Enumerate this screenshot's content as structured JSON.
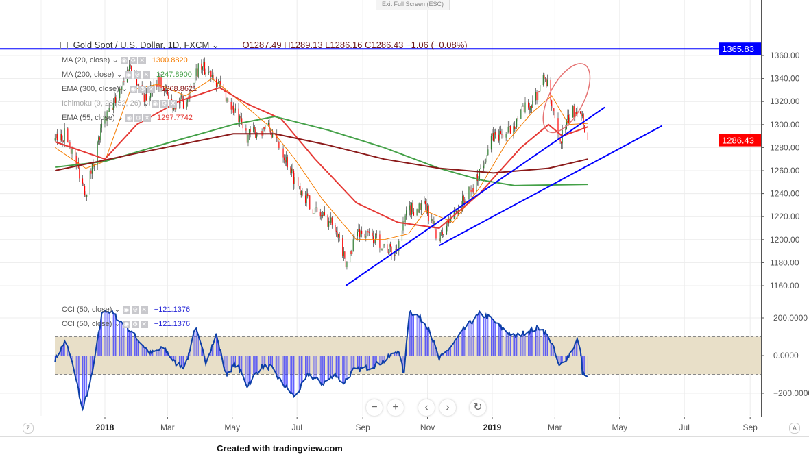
{
  "toolbar": {
    "exit_fullscreen": "Exit Full Screen (ESC)"
  },
  "header": {
    "symbol": "Gold Spot / U.S. Dollar, 1D, FXCM",
    "ohlc": "O1287.49  H1289.13  L1286.16  C1286.43  −1.06 (−0.08%)"
  },
  "indicators": [
    {
      "label": "MA (20, close)",
      "value": "1300.8820",
      "color": "#f57c00"
    },
    {
      "label": "MA (200, close)",
      "value": "1247.8900",
      "color": "#43a047"
    },
    {
      "label": "EMA (300, close)",
      "value": "1268.8621",
      "color": "#8b1a1a"
    },
    {
      "label": "Ichimoku (9, 26, 52, 26)",
      "value": "",
      "color": "#999999"
    },
    {
      "label": "EMA (55, close)",
      "value": "1297.7742",
      "color": "#e53935"
    }
  ],
  "cci_legends": [
    {
      "label": "CCI (50, close)",
      "value": "−121.1376"
    },
    {
      "label": "CCI (50, close)",
      "value": "−121.1376"
    }
  ],
  "footer": {
    "credit": "Created with tradingview.com",
    "left_button": "Z",
    "right_button": "A"
  },
  "nav": {
    "zoom_out": "−",
    "zoom_in": "+",
    "scroll_left": "‹",
    "scroll_right": "›",
    "reset": "↻"
  },
  "chart_data": [
    {
      "type": "candlestick",
      "title": "Gold Spot / U.S. Dollar, 1D, FXCM",
      "ylim": [
        1150,
        1372
      ],
      "xlim": [
        "2017-11-15",
        "2019-10-01"
      ],
      "y_ticks": [
        "1160.00",
        "1180.00",
        "1200.00",
        "1220.00",
        "1240.00",
        "1260.00",
        "1280.00",
        "1300.00",
        "1320.00",
        "1340.00",
        "1360.00"
      ],
      "x_ticks": [
        {
          "date": "2018-01-01",
          "label": "2018"
        },
        {
          "date": "2018-03-01",
          "label": "Mar"
        },
        {
          "date": "2018-05-01",
          "label": "May"
        },
        {
          "date": "2018-07-01",
          "label": "Jul"
        },
        {
          "date": "2018-09-01",
          "label": "Sep"
        },
        {
          "date": "2018-11-01",
          "label": "Nov"
        },
        {
          "date": "2019-01-01",
          "label": "2019"
        },
        {
          "date": "2019-03-01",
          "label": "Mar"
        },
        {
          "date": "2019-05-01",
          "label": "May"
        },
        {
          "date": "2019-07-01",
          "label": "Jul"
        },
        {
          "date": "2019-09-01",
          "label": "Sep"
        }
      ],
      "grid": true,
      "last_price": {
        "value": 1286.43,
        "label": "1286.43",
        "color": "#ff0000"
      },
      "horizontal_line": {
        "value": 1365.83,
        "label": "1365.83",
        "color": "#0000ff"
      },
      "up_color": "#2e7d32",
      "down_color": "#ff0000",
      "close_path": [
        [
          "2017-11-15",
          1286
        ],
        [
          "2017-11-25",
          1292
        ],
        [
          "2017-12-04",
          1270
        ],
        [
          "2017-12-14",
          1241
        ],
        [
          "2017-12-30",
          1300
        ],
        [
          "2018-01-09",
          1318
        ],
        [
          "2018-01-25",
          1352
        ],
        [
          "2018-02-08",
          1322
        ],
        [
          "2018-02-20",
          1340
        ],
        [
          "2018-03-05",
          1318
        ],
        [
          "2018-03-18",
          1320
        ],
        [
          "2018-03-30",
          1350
        ],
        [
          "2018-04-12",
          1345
        ],
        [
          "2018-04-29",
          1318
        ],
        [
          "2018-05-15",
          1290
        ],
        [
          "2018-06-03",
          1298
        ],
        [
          "2018-06-16",
          1280
        ],
        [
          "2018-06-29",
          1252
        ],
        [
          "2018-07-18",
          1225
        ],
        [
          "2018-08-07",
          1212
        ],
        [
          "2018-08-16",
          1176
        ],
        [
          "2018-08-26",
          1208
        ],
        [
          "2018-09-14",
          1200
        ],
        [
          "2018-10-01",
          1187
        ],
        [
          "2018-10-14",
          1226
        ],
        [
          "2018-10-30",
          1228
        ],
        [
          "2018-11-12",
          1200
        ],
        [
          "2018-11-25",
          1222
        ],
        [
          "2018-12-14",
          1245
        ],
        [
          "2019-01-02",
          1290
        ],
        [
          "2019-01-15",
          1292
        ],
        [
          "2019-01-28",
          1310
        ],
        [
          "2019-02-07",
          1318
        ],
        [
          "2019-02-20",
          1342
        ],
        [
          "2019-03-05",
          1284
        ],
        [
          "2019-03-14",
          1305
        ],
        [
          "2019-03-24",
          1318
        ],
        [
          "2019-04-01",
          1286
        ]
      ],
      "series": [
        {
          "name": "MA (20, close)",
          "color": "#f57c00",
          "points": [
            [
              "2017-11-15",
              1280
            ],
            [
              "2017-12-14",
              1262
            ],
            [
              "2018-01-01",
              1268
            ],
            [
              "2018-01-25",
              1330
            ],
            [
              "2018-02-20",
              1335
            ],
            [
              "2018-03-18",
              1325
            ],
            [
              "2018-04-12",
              1340
            ],
            [
              "2018-05-02",
              1325
            ],
            [
              "2018-06-03",
              1300
            ],
            [
              "2018-06-29",
              1270
            ],
            [
              "2018-07-25",
              1235
            ],
            [
              "2018-08-26",
              1200
            ],
            [
              "2018-09-21",
              1200
            ],
            [
              "2018-10-14",
              1205
            ],
            [
              "2018-10-30",
              1225
            ],
            [
              "2018-11-25",
              1215
            ],
            [
              "2018-12-20",
              1245
            ],
            [
              "2019-01-15",
              1285
            ],
            [
              "2019-02-07",
              1310
            ],
            [
              "2019-02-26",
              1325
            ],
            [
              "2019-03-14",
              1300
            ],
            [
              "2019-04-01",
              1301
            ]
          ]
        },
        {
          "name": "EMA (55, close)",
          "color": "#e53935",
          "points": [
            [
              "2017-11-15",
              1285
            ],
            [
              "2018-01-01",
              1270
            ],
            [
              "2018-01-31",
              1300
            ],
            [
              "2018-03-11",
              1320
            ],
            [
              "2018-04-19",
              1332
            ],
            [
              "2018-05-15",
              1318
            ],
            [
              "2018-06-16",
              1305
            ],
            [
              "2018-07-18",
              1270
            ],
            [
              "2018-08-26",
              1232
            ],
            [
              "2018-10-04",
              1215
            ],
            [
              "2018-11-12",
              1210
            ],
            [
              "2018-12-20",
              1240
            ],
            [
              "2019-01-28",
              1280
            ],
            [
              "2019-02-23",
              1300
            ],
            [
              "2019-03-08",
              1290
            ],
            [
              "2019-04-01",
              1298
            ]
          ]
        },
        {
          "name": "MA (200, close)",
          "color": "#43a047",
          "points": [
            [
              "2017-11-15",
              1263
            ],
            [
              "2018-01-01",
              1268
            ],
            [
              "2018-03-05",
              1285
            ],
            [
              "2018-05-02",
              1300
            ],
            [
              "2018-06-10",
              1307
            ],
            [
              "2018-07-31",
              1295
            ],
            [
              "2018-09-21",
              1280
            ],
            [
              "2018-11-12",
              1262
            ],
            [
              "2018-12-20",
              1252
            ],
            [
              "2019-01-22",
              1247
            ],
            [
              "2019-04-01",
              1248
            ]
          ]
        },
        {
          "name": "EMA (300, close)",
          "color": "#8b1a1a",
          "points": [
            [
              "2017-11-15",
              1260
            ],
            [
              "2018-01-31",
              1275
            ],
            [
              "2018-05-02",
              1292
            ],
            [
              "2018-06-10",
              1292
            ],
            [
              "2018-07-31",
              1282
            ],
            [
              "2018-09-21",
              1270
            ],
            [
              "2018-11-12",
              1262
            ],
            [
              "2019-01-02",
              1258
            ],
            [
              "2019-02-23",
              1262
            ],
            [
              "2019-04-01",
              1270
            ]
          ]
        }
      ],
      "trendlines": [
        {
          "color": "#0000ff",
          "from": [
            "2018-08-16",
            1160
          ],
          "to": [
            "2019-04-17",
            1315
          ]
        },
        {
          "color": "#0000ff",
          "from": [
            "2018-11-12",
            1195
          ],
          "to": [
            "2019-06-10",
            1299
          ]
        }
      ],
      "annotation_ellipse": {
        "color": "#e57373",
        "center": [
          "2019-03-12",
          1323
        ],
        "span_days": 26,
        "span_price": 66
      }
    },
    {
      "type": "line+histogram",
      "title": "CCI (50, close)",
      "ylim": [
        -310,
        310
      ],
      "y_ticks": [
        "200.0000",
        "0.0000",
        "−200.0000"
      ],
      "band": [
        -100,
        100
      ],
      "band_color": "#e8dfc8",
      "line_color": "#0d3fa6",
      "bar_color": "#3b3bff",
      "last_value": -121.1376,
      "points": [
        [
          "2017-11-15",
          -20
        ],
        [
          "2017-11-25",
          80
        ],
        [
          "2017-12-04",
          -100
        ],
        [
          "2017-12-11",
          -290
        ],
        [
          "2017-12-20",
          -100
        ],
        [
          "2017-12-30",
          250
        ],
        [
          "2018-01-09",
          220
        ],
        [
          "2018-01-25",
          130
        ],
        [
          "2018-02-13",
          10
        ],
        [
          "2018-02-26",
          40
        ],
        [
          "2018-03-08",
          -40
        ],
        [
          "2018-03-18",
          -60
        ],
        [
          "2018-03-27",
          150
        ],
        [
          "2018-04-06",
          -30
        ],
        [
          "2018-04-16",
          110
        ],
        [
          "2018-04-25",
          -100
        ],
        [
          "2018-05-05",
          -40
        ],
        [
          "2018-05-15",
          -160
        ],
        [
          "2018-05-28",
          -60
        ],
        [
          "2018-06-06",
          -60
        ],
        [
          "2018-06-16",
          -140
        ],
        [
          "2018-06-29",
          -220
        ],
        [
          "2018-07-12",
          -100
        ],
        [
          "2018-07-25",
          -150
        ],
        [
          "2018-08-07",
          -100
        ],
        [
          "2018-08-13",
          -150
        ],
        [
          "2018-08-23",
          -80
        ],
        [
          "2018-09-08",
          -60
        ],
        [
          "2018-09-21",
          -30
        ],
        [
          "2018-10-04",
          30
        ],
        [
          "2018-10-10",
          -100
        ],
        [
          "2018-10-14",
          240
        ],
        [
          "2018-10-23",
          210
        ],
        [
          "2018-11-02",
          150
        ],
        [
          "2018-11-12",
          -20
        ],
        [
          "2018-11-25",
          60
        ],
        [
          "2018-12-07",
          150
        ],
        [
          "2018-12-20",
          220
        ],
        [
          "2018-12-30",
          200
        ],
        [
          "2019-01-09",
          150
        ],
        [
          "2019-01-22",
          100
        ],
        [
          "2019-02-04",
          130
        ],
        [
          "2019-02-16",
          150
        ],
        [
          "2019-02-26",
          70
        ],
        [
          "2019-03-05",
          -60
        ],
        [
          "2019-03-14",
          0
        ],
        [
          "2019-03-24",
          100
        ],
        [
          "2019-03-27",
          -90
        ],
        [
          "2019-04-01",
          -121
        ]
      ]
    }
  ]
}
